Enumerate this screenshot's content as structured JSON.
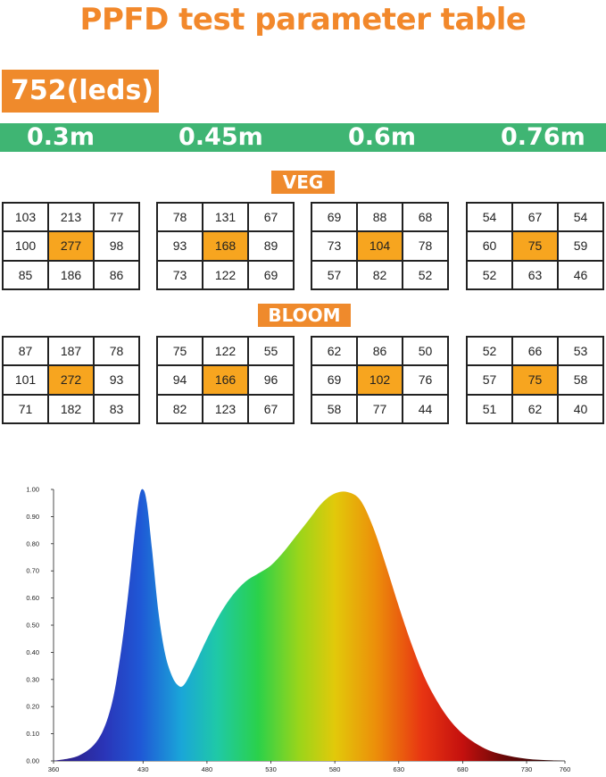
{
  "title": "PPFD test parameter table",
  "leds_label": "752(leds)",
  "distances": [
    "0.3m",
    "0.45m",
    "0.6m",
    "0.76m"
  ],
  "veg": {
    "label": "VEG",
    "grids": [
      [
        [
          103,
          213,
          77
        ],
        [
          100,
          277,
          98
        ],
        [
          85,
          186,
          86
        ]
      ],
      [
        [
          78,
          131,
          67
        ],
        [
          93,
          168,
          89
        ],
        [
          73,
          122,
          69
        ]
      ],
      [
        [
          69,
          88,
          68
        ],
        [
          73,
          104,
          78
        ],
        [
          57,
          82,
          52
        ]
      ],
      [
        [
          54,
          67,
          54
        ],
        [
          60,
          75,
          59
        ],
        [
          52,
          63,
          46
        ]
      ]
    ]
  },
  "bloom": {
    "label": "BLOOM",
    "grids": [
      [
        [
          87,
          187,
          78
        ],
        [
          101,
          272,
          93
        ],
        [
          71,
          182,
          83
        ]
      ],
      [
        [
          75,
          122,
          55
        ],
        [
          94,
          166,
          96
        ],
        [
          82,
          123,
          67
        ]
      ],
      [
        [
          62,
          86,
          50
        ],
        [
          69,
          102,
          76
        ],
        [
          58,
          77,
          44
        ]
      ],
      [
        [
          52,
          66,
          53
        ],
        [
          57,
          75,
          58
        ],
        [
          51,
          62,
          40
        ]
      ]
    ]
  },
  "highlight_color": "#f7a51f",
  "accent_orange": "#ef8a2c",
  "bar_green": "#3fb573",
  "chart_data": {
    "type": "area",
    "xlim": [
      360,
      760
    ],
    "ylim": [
      0,
      1.0
    ],
    "xticks": [
      360,
      430,
      480,
      530,
      580,
      630,
      680,
      730,
      760
    ],
    "xtick_labels": [
      "360",
      "430",
      "480",
      "530",
      "580",
      "630",
      "680",
      "730",
      "760"
    ],
    "yticks": [
      0,
      0.1,
      0.2,
      0.3,
      0.4,
      0.5,
      0.6,
      0.7,
      0.8,
      0.9,
      1.0
    ],
    "ytick_labels": [
      "0.00",
      "0.10",
      "0.20",
      "0.30",
      "0.40",
      "0.50",
      "0.60",
      "0.70",
      "0.80",
      "0.90",
      "1.00"
    ],
    "x": [
      360,
      380,
      395,
      405,
      412,
      418,
      423,
      427,
      430,
      433,
      437,
      442,
      447,
      452,
      457,
      462,
      470,
      480,
      490,
      500,
      510,
      520,
      530,
      540,
      550,
      560,
      570,
      580,
      590,
      600,
      610,
      620,
      630,
      640,
      650,
      660,
      670,
      680,
      690,
      700,
      710,
      720,
      730,
      740,
      750,
      760
    ],
    "y": [
      0.0,
      0.02,
      0.08,
      0.2,
      0.38,
      0.6,
      0.82,
      0.97,
      1.0,
      0.95,
      0.78,
      0.55,
      0.4,
      0.32,
      0.28,
      0.28,
      0.35,
      0.45,
      0.54,
      0.61,
      0.66,
      0.69,
      0.72,
      0.77,
      0.83,
      0.89,
      0.95,
      0.985,
      0.99,
      0.96,
      0.86,
      0.72,
      0.57,
      0.43,
      0.31,
      0.22,
      0.15,
      0.1,
      0.065,
      0.04,
      0.025,
      0.015,
      0.008,
      0.004,
      0.002,
      0.0
    ],
    "grid": false
  }
}
